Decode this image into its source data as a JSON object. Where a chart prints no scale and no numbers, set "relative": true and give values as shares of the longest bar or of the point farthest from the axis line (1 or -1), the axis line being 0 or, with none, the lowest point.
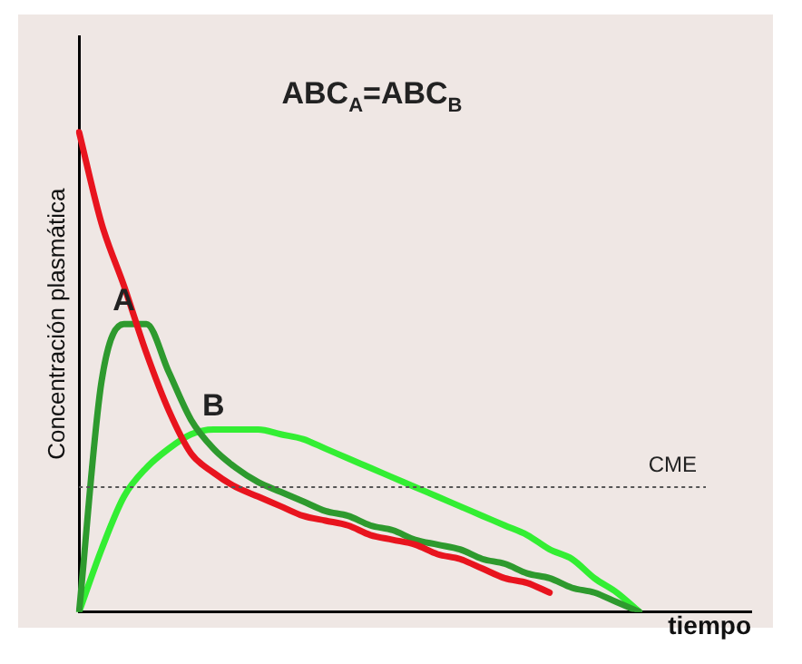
{
  "chart_data": {
    "type": "line",
    "title": "ABC$_{A}$=ABC$_{B}$",
    "xlabel": "tiempo",
    "ylabel": "Concentración plasmática",
    "relative": true,
    "categories": [
      null,
      null,
      null,
      null,
      null,
      null,
      null,
      null,
      null,
      null,
      null,
      null,
      null,
      null,
      null,
      null,
      null,
      null,
      null,
      null,
      null,
      null,
      null,
      null,
      null,
      null,
      null,
      null,
      null,
      null,
      null
    ],
    "series": [
      {
        "color": "#e8141e",
        "values": [
          1,
          0.81,
          0.68,
          0.54,
          0.42,
          0.33,
          0.29,
          0.26,
          0.24,
          0.22,
          0.2,
          0.19,
          0.18,
          0.16,
          0.15,
          0.14,
          0.12,
          0.11,
          0.09,
          0.07,
          0.06,
          0.04,
          null,
          null,
          null,
          null,
          null,
          null,
          null,
          null,
          null
        ]
      },
      {
        "name": "A",
        "color": "#2e9a2e",
        "values": [
          0,
          0.48,
          0.6,
          0.6,
          0.5,
          0.4,
          0.34,
          0.3,
          0.27,
          0.25,
          0.23,
          0.21,
          0.2,
          0.18,
          0.17,
          0.15,
          0.14,
          0.13,
          0.11,
          0.1,
          0.08,
          0.07,
          0.05,
          0.04,
          0.02,
          0,
          null,
          null,
          null,
          null,
          null
        ]
      },
      {
        "name": "B",
        "color": "#33ee33",
        "values": [
          0,
          0.13,
          0.24,
          0.3,
          0.34,
          0.37,
          0.38,
          0.38,
          0.38,
          0.37,
          0.36,
          0.34,
          0.32,
          0.3,
          0.28,
          0.26,
          0.24,
          0.22,
          0.2,
          0.18,
          0.16,
          0.13,
          0.11,
          0.07,
          0.04,
          0,
          null,
          null,
          null,
          null,
          null
        ]
      }
    ],
    "ref_lines": [
      {
        "axis": "y",
        "value": 0.26,
        "label": "CME"
      }
    ]
  }
}
